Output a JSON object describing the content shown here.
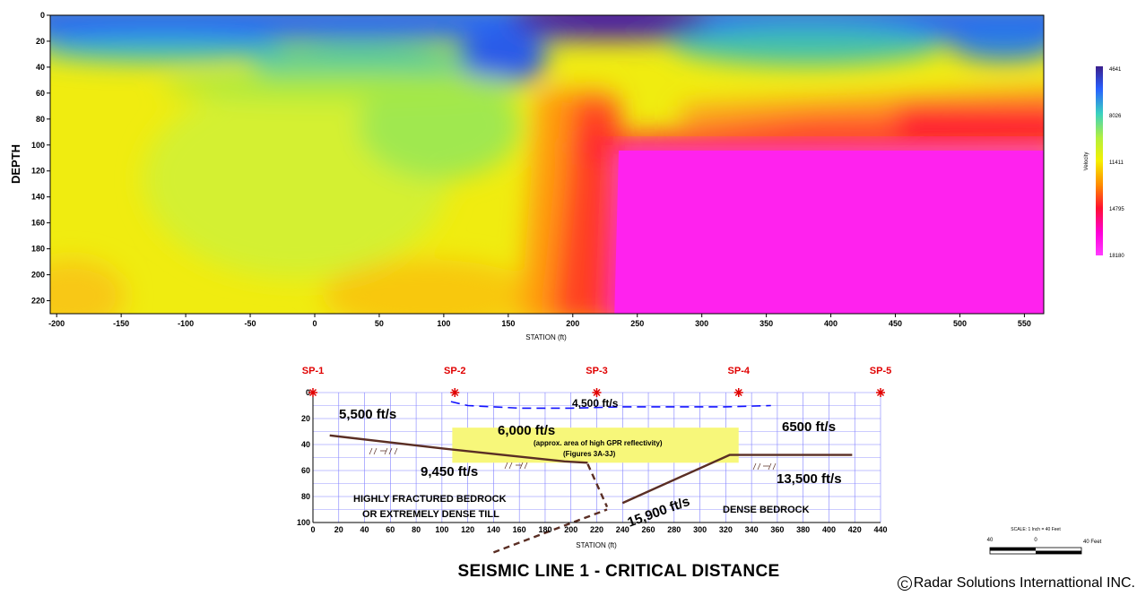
{
  "chart_data": [
    {
      "type": "heatmap",
      "title": "",
      "xlabel": "STATION (ft)",
      "ylabel": "DEPTH",
      "xlim": [
        -205,
        565
      ],
      "ylim": [
        0,
        230
      ],
      "y_inverted": true,
      "x_ticks": [
        -200,
        -150,
        -100,
        -50,
        0,
        50,
        100,
        150,
        200,
        250,
        300,
        350,
        400,
        450,
        500,
        550
      ],
      "y_ticks": [
        0,
        20,
        40,
        60,
        80,
        100,
        120,
        140,
        160,
        180,
        200,
        220
      ],
      "colorbar": {
        "title": "Velocity",
        "ticks": [
          4641,
          8026,
          11411,
          14795,
          18180
        ],
        "colors": [
          "#3b1f8c",
          "#2860ff",
          "#3ad2c0",
          "#b4f03c",
          "#f5f000",
          "#ff8a00",
          "#ff1030",
          "#ff00d8",
          "#ff3cff"
        ]
      }
    },
    {
      "type": "line",
      "title": "SEISMIC LINE 1 - CRITICAL DISTANCE",
      "xlabel": "STATION (ft)",
      "ylabel": "",
      "xlim": [
        0,
        440
      ],
      "ylim": [
        0,
        100
      ],
      "y_inverted": true,
      "x_ticks": [
        0,
        20,
        40,
        60,
        80,
        100,
        120,
        140,
        160,
        180,
        200,
        220,
        240,
        260,
        280,
        300,
        320,
        340,
        360,
        380,
        400,
        420,
        440
      ],
      "y_ticks": [
        0,
        20,
        40,
        60,
        80,
        100
      ],
      "shot_points": [
        {
          "label": "SP-1",
          "x": 0
        },
        {
          "label": "SP-2",
          "x": 110
        },
        {
          "label": "SP-3",
          "x": 220
        },
        {
          "label": "SP-4",
          "x": 330
        },
        {
          "label": "SP-5",
          "x": 440
        }
      ],
      "series": [
        {
          "style": "dashed",
          "color": "#1010ff",
          "x": [
            107,
            120,
            160,
            200,
            240,
            280,
            320,
            355
          ],
          "y": [
            7,
            10,
            12,
            12,
            11,
            11,
            11,
            10
          ]
        },
        {
          "style": "solid",
          "color": "#5a2e24",
          "x": [
            13,
            100,
            195,
            213
          ],
          "y": [
            33,
            43,
            53,
            54
          ]
        },
        {
          "style": "solid",
          "color": "#5a2e24",
          "x": [
            240,
            323,
            345,
            418
          ],
          "y": [
            85,
            48,
            48,
            48
          ]
        },
        {
          "style": "dashed",
          "color": "#5a2e24",
          "x": [
            213,
            228
          ],
          "y": [
            55,
            88
          ]
        },
        {
          "style": "dashed",
          "color": "#5a2e24",
          "x": [
            140,
            228
          ],
          "y": [
            123,
            90
          ]
        }
      ],
      "highlight": {
        "x": [
          108,
          330
        ],
        "y": [
          27,
          54
        ],
        "color": "#f7f77a"
      },
      "annotations": [
        "5,500 ft/s",
        "4,500 ft/s",
        "6,000 ft/s",
        "(approx. area of high GPR reflectivity)",
        "(Figures 3A-3J)",
        "6500 ft/s",
        "9,450 ft/s",
        "13,500 ft/s",
        "HIGHLY FRACTURED BEDROCK",
        "OR EXTREMELY DENSE TILL",
        "15,900 ft/s",
        "DENSE BEDROCK"
      ]
    }
  ],
  "scale_bar": {
    "caption": "SCALE: 1 Inch = 40 Feet",
    "labels": [
      "40",
      "0",
      "40 Feet"
    ]
  },
  "footer": {
    "title": "SEISMIC LINE 1 - CRITICAL DISTANCE",
    "copyright": "Radar Solutions Internattional INC."
  }
}
